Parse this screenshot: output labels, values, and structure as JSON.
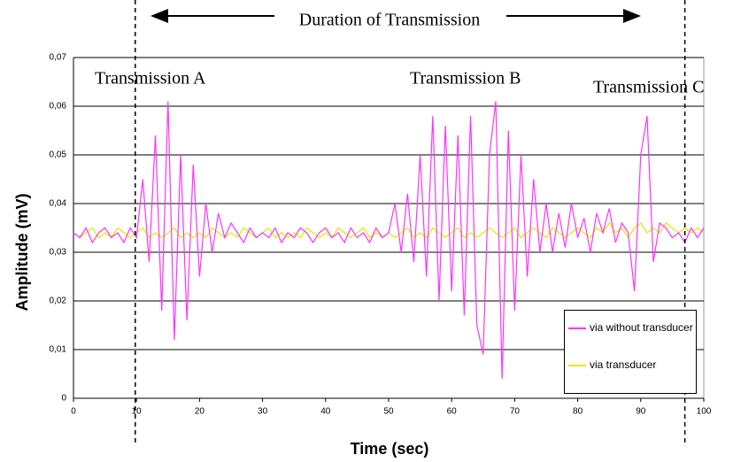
{
  "chart_data": {
    "type": "line",
    "annotations": {
      "duration": "Duration of Transmission",
      "a": "Transmission A",
      "b": "Transmission B",
      "c": "Transmission C"
    },
    "vlines": [
      9.8,
      97
    ],
    "xlabel": "Time (sec)",
    "ylabel": "Amplitude (mV)",
    "x": [
      0,
      1,
      2,
      3,
      4,
      5,
      6,
      7,
      8,
      9,
      10,
      11,
      12,
      13,
      14,
      15,
      16,
      17,
      18,
      19,
      20,
      21,
      22,
      23,
      24,
      25,
      26,
      27,
      28,
      29,
      30,
      31,
      32,
      33,
      34,
      35,
      36,
      37,
      38,
      39,
      40,
      41,
      42,
      43,
      44,
      45,
      46,
      47,
      48,
      49,
      50,
      51,
      52,
      53,
      54,
      55,
      56,
      57,
      58,
      59,
      60,
      61,
      62,
      63,
      64,
      65,
      66,
      67,
      68,
      69,
      70,
      71,
      72,
      73,
      74,
      75,
      76,
      77,
      78,
      79,
      80,
      81,
      82,
      83,
      84,
      85,
      86,
      87,
      88,
      89,
      90,
      91,
      92,
      93,
      94,
      95,
      96,
      97,
      98,
      99,
      100
    ],
    "series": [
      {
        "name": "via without transducer",
        "color": "#ff33ff",
        "values": [
          0.034,
          0.033,
          0.035,
          0.032,
          0.034,
          0.035,
          0.033,
          0.034,
          0.032,
          0.035,
          0.033,
          0.045,
          0.028,
          0.054,
          0.018,
          0.061,
          0.012,
          0.05,
          0.016,
          0.048,
          0.025,
          0.04,
          0.03,
          0.038,
          0.033,
          0.036,
          0.034,
          0.032,
          0.035,
          0.033,
          0.034,
          0.033,
          0.035,
          0.032,
          0.034,
          0.033,
          0.035,
          0.034,
          0.032,
          0.034,
          0.035,
          0.033,
          0.034,
          0.032,
          0.035,
          0.033,
          0.034,
          0.032,
          0.035,
          0.033,
          0.034,
          0.04,
          0.03,
          0.042,
          0.028,
          0.05,
          0.025,
          0.058,
          0.02,
          0.056,
          0.022,
          0.054,
          0.017,
          0.058,
          0.015,
          0.009,
          0.05,
          0.061,
          0.004,
          0.055,
          0.018,
          0.05,
          0.025,
          0.045,
          0.03,
          0.04,
          0.03,
          0.038,
          0.031,
          0.04,
          0.033,
          0.037,
          0.03,
          0.038,
          0.034,
          0.039,
          0.032,
          0.036,
          0.034,
          0.022,
          0.05,
          0.058,
          0.028,
          0.036,
          0.035,
          0.033,
          0.034,
          0.032,
          0.035,
          0.033,
          0.035
        ]
      },
      {
        "name": "via transducer",
        "color": "#e6e600",
        "values": [
          0.034,
          0.033,
          0.034,
          0.035,
          0.033,
          0.034,
          0.033,
          0.035,
          0.034,
          0.033,
          0.034,
          0.035,
          0.033,
          0.034,
          0.033,
          0.034,
          0.035,
          0.033,
          0.034,
          0.033,
          0.034,
          0.033,
          0.035,
          0.034,
          0.033,
          0.034,
          0.033,
          0.035,
          0.034,
          0.033,
          0.034,
          0.035,
          0.033,
          0.034,
          0.033,
          0.034,
          0.033,
          0.035,
          0.034,
          0.033,
          0.034,
          0.033,
          0.035,
          0.034,
          0.033,
          0.034,
          0.035,
          0.033,
          0.034,
          0.033,
          0.034,
          0.033,
          0.034,
          0.035,
          0.033,
          0.034,
          0.033,
          0.035,
          0.034,
          0.033,
          0.034,
          0.035,
          0.033,
          0.034,
          0.033,
          0.034,
          0.035,
          0.034,
          0.033,
          0.034,
          0.035,
          0.033,
          0.034,
          0.035,
          0.034,
          0.033,
          0.035,
          0.034,
          0.033,
          0.034,
          0.035,
          0.034,
          0.033,
          0.035,
          0.034,
          0.036,
          0.034,
          0.035,
          0.033,
          0.035,
          0.036,
          0.034,
          0.035,
          0.034,
          0.036,
          0.035,
          0.034,
          0.035,
          0.034,
          0.035,
          0.034
        ]
      }
    ],
    "xlim": [
      0,
      100
    ],
    "xticks": [
      0,
      10,
      20,
      30,
      40,
      50,
      60,
      70,
      80,
      90,
      100
    ],
    "ylim": [
      0,
      0.07
    ],
    "yticks": [
      0,
      {
        "value": 0.01,
        "label": "0,01"
      },
      {
        "value": 0.02,
        "label": "0,02"
      },
      {
        "value": 0.03,
        "label": "0,03"
      },
      {
        "value": 0.04,
        "label": "0,04"
      },
      {
        "value": 0.05,
        "label": "0,05"
      },
      {
        "value": 0.06,
        "label": "0,06"
      },
      {
        "value": 0.07,
        "label": "0,07"
      }
    ],
    "grid": true,
    "legend": "lower right"
  }
}
